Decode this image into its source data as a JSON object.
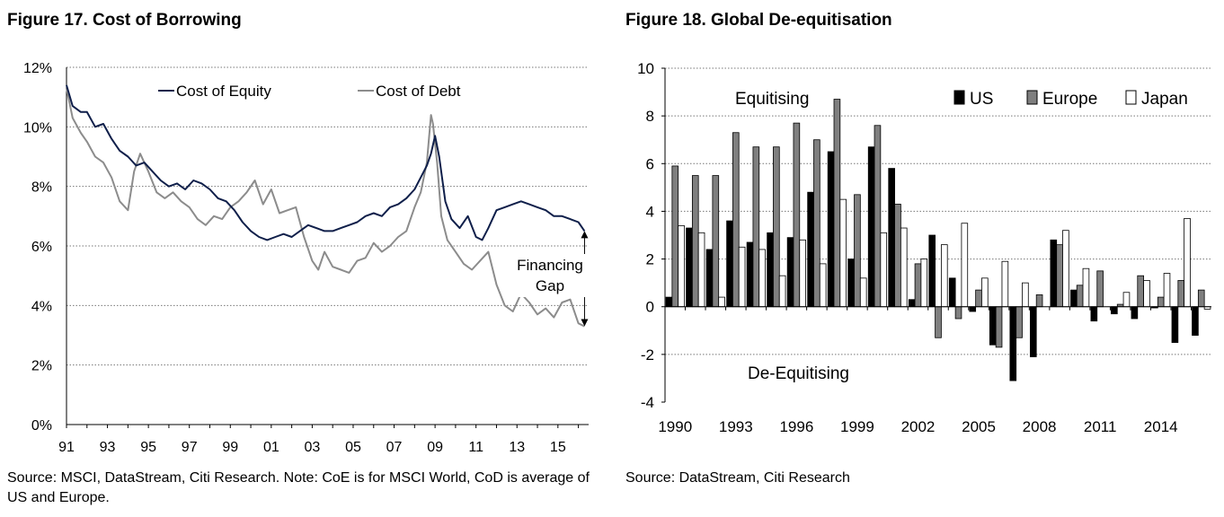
{
  "chart_data": [
    {
      "type": "line",
      "title": "Figure 17. Cost of Borrowing",
      "source": "Source: MSCI, DataStream, Citi Research. Note: CoE is for MSCI World, CoD is average of US and Europe.",
      "x_ticks": [
        "91",
        "93",
        "95",
        "97",
        "99",
        "01",
        "03",
        "05",
        "07",
        "09",
        "11",
        "13",
        "15"
      ],
      "x_tick_years": [
        1991,
        1993,
        1995,
        1997,
        1999,
        2001,
        2003,
        2005,
        2007,
        2009,
        2011,
        2013,
        2015
      ],
      "xlim": [
        1991,
        2016.5
      ],
      "y_ticks": [
        "0%",
        "2%",
        "4%",
        "6%",
        "8%",
        "10%",
        "12%"
      ],
      "ylim": [
        0,
        12
      ],
      "annotation": {
        "lines": [
          "Financing",
          "Gap"
        ],
        "from_value": 6.5,
        "to_value": 3.3,
        "year": 2016.3
      },
      "series": [
        {
          "name": "Cost of Equity",
          "color": "#0f1f4a",
          "x": [
            1991.0,
            1991.3,
            1991.7,
            1992.0,
            1992.4,
            1992.8,
            1993.2,
            1993.6,
            1994.0,
            1994.4,
            1994.8,
            1995.2,
            1995.6,
            1996.0,
            1996.4,
            1996.8,
            1997.2,
            1997.6,
            1998.0,
            1998.4,
            1998.8,
            1999.2,
            1999.6,
            2000.0,
            2000.4,
            2000.8,
            2001.2,
            2001.6,
            2002.0,
            2002.4,
            2002.8,
            2003.2,
            2003.6,
            2004.0,
            2004.4,
            2004.8,
            2005.2,
            2005.6,
            2006.0,
            2006.4,
            2006.8,
            2007.2,
            2007.6,
            2008.0,
            2008.3,
            2008.6,
            2008.8,
            2009.0,
            2009.2,
            2009.5,
            2009.8,
            2010.2,
            2010.6,
            2011.0,
            2011.3,
            2011.6,
            2012.0,
            2012.4,
            2012.8,
            2013.2,
            2013.6,
            2014.0,
            2014.4,
            2014.8,
            2015.2,
            2015.6,
            2016.0,
            2016.3
          ],
          "values": [
            11.4,
            10.7,
            10.5,
            10.5,
            10.0,
            10.1,
            9.6,
            9.2,
            9.0,
            8.7,
            8.8,
            8.5,
            8.2,
            8.0,
            8.1,
            7.9,
            8.2,
            8.1,
            7.9,
            7.6,
            7.5,
            7.2,
            6.8,
            6.5,
            6.3,
            6.2,
            6.3,
            6.4,
            6.3,
            6.5,
            6.7,
            6.6,
            6.5,
            6.5,
            6.6,
            6.7,
            6.8,
            7.0,
            7.1,
            7.0,
            7.3,
            7.4,
            7.6,
            7.9,
            8.3,
            8.7,
            9.1,
            9.7,
            9.0,
            7.5,
            6.9,
            6.6,
            7.0,
            6.3,
            6.2,
            6.6,
            7.2,
            7.3,
            7.4,
            7.5,
            7.4,
            7.3,
            7.2,
            7.0,
            7.0,
            6.9,
            6.8,
            6.5
          ]
        },
        {
          "name": "Cost of Debt",
          "color": "#8c8c8c",
          "x": [
            1991.0,
            1991.3,
            1991.7,
            1992.0,
            1992.4,
            1992.8,
            1993.2,
            1993.6,
            1994.0,
            1994.3,
            1994.6,
            1995.0,
            1995.4,
            1995.8,
            1996.2,
            1996.6,
            1997.0,
            1997.4,
            1997.8,
            1998.2,
            1998.6,
            1999.0,
            1999.4,
            1999.8,
            2000.2,
            2000.6,
            2001.0,
            2001.4,
            2001.8,
            2002.2,
            2002.6,
            2003.0,
            2003.3,
            2003.6,
            2004.0,
            2004.4,
            2004.8,
            2005.2,
            2005.6,
            2006.0,
            2006.4,
            2006.8,
            2007.2,
            2007.6,
            2008.0,
            2008.3,
            2008.6,
            2008.8,
            2008.9,
            2009.1,
            2009.3,
            2009.6,
            2010.0,
            2010.4,
            2010.8,
            2011.2,
            2011.6,
            2012.0,
            2012.4,
            2012.8,
            2013.2,
            2013.6,
            2014.0,
            2014.4,
            2014.8,
            2015.2,
            2015.6,
            2016.0,
            2016.3
          ],
          "values": [
            11.3,
            10.3,
            9.8,
            9.5,
            9.0,
            8.8,
            8.3,
            7.5,
            7.2,
            8.5,
            9.1,
            8.5,
            7.8,
            7.6,
            7.8,
            7.5,
            7.3,
            6.9,
            6.7,
            7.0,
            6.9,
            7.3,
            7.5,
            7.8,
            8.2,
            7.4,
            7.9,
            7.1,
            7.2,
            7.3,
            6.3,
            5.5,
            5.2,
            5.8,
            5.3,
            5.2,
            5.1,
            5.5,
            5.6,
            6.1,
            5.8,
            6.0,
            6.3,
            6.5,
            7.3,
            7.8,
            8.8,
            10.4,
            10.1,
            8.8,
            7.0,
            6.2,
            5.8,
            5.4,
            5.2,
            5.5,
            5.8,
            4.7,
            4.0,
            3.8,
            4.4,
            4.1,
            3.7,
            3.9,
            3.6,
            4.1,
            4.2,
            3.4,
            3.3
          ]
        }
      ]
    },
    {
      "type": "bar",
      "title": "Figure 18. Global De-equitisation",
      "source": "Source: DataStream, Citi Research",
      "categories": [
        1990,
        1991,
        1992,
        1993,
        1994,
        1995,
        1996,
        1997,
        1998,
        1999,
        2000,
        2001,
        2002,
        2003,
        2004,
        2005,
        2006,
        2007,
        2008,
        2009,
        2010,
        2011,
        2012,
        2013,
        2014,
        2015,
        2016
      ],
      "x_ticks": [
        "1990",
        "1993",
        "1996",
        "1999",
        "2002",
        "2005",
        "2008",
        "2011",
        "2014"
      ],
      "ylim": [
        -4,
        10
      ],
      "y_ticks": [
        "-4",
        "-2",
        "0",
        "2",
        "4",
        "6",
        "8",
        "10"
      ],
      "annotations": [
        "Equitising",
        "De-Equitising"
      ],
      "series": [
        {
          "name": "US",
          "color": "#000000",
          "values": [
            0.4,
            3.3,
            2.4,
            3.6,
            2.7,
            3.1,
            2.9,
            4.8,
            6.5,
            2.0,
            6.7,
            5.8,
            0.3,
            3.0,
            1.2,
            -0.2,
            -1.6,
            -3.1,
            -2.1,
            2.8,
            0.7,
            -0.6,
            -0.3,
            -0.5,
            -0.05,
            -1.5,
            -1.2
          ]
        },
        {
          "name": "Europe",
          "color": "#7f7f7f",
          "values": [
            5.9,
            5.5,
            5.5,
            7.3,
            6.7,
            6.7,
            7.7,
            7.0,
            8.7,
            4.7,
            7.6,
            4.3,
            1.8,
            -1.3,
            -0.5,
            0.7,
            -1.7,
            -1.3,
            0.5,
            2.6,
            0.9,
            1.5,
            0.1,
            1.3,
            0.4,
            1.1,
            0.7
          ]
        },
        {
          "name": "Japan",
          "color": "#ffffff",
          "values": [
            3.4,
            3.1,
            0.4,
            2.5,
            2.4,
            1.3,
            2.8,
            1.8,
            4.5,
            1.2,
            3.1,
            3.3,
            2.0,
            2.6,
            3.5,
            1.2,
            1.9,
            1.0,
            0.0,
            3.2,
            1.6,
            0.0,
            0.6,
            1.1,
            1.4,
            3.7,
            -0.1
          ]
        }
      ]
    }
  ]
}
